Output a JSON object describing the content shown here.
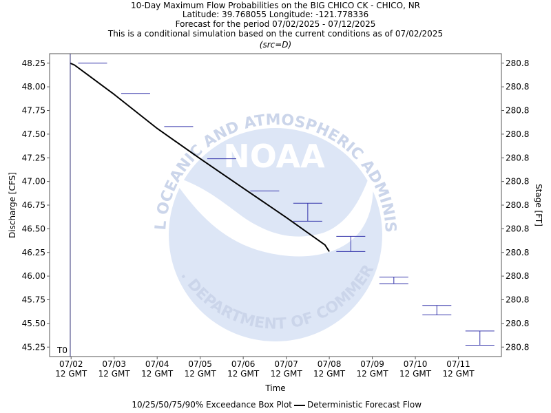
{
  "chart_data": {
    "type": "line",
    "title_lines": [
      "10-Day Maximum Flow Probabilities on the BIG CHICO CK - CHICO, NR",
      "Latitude: 39.768055 Longitude: -121.778336",
      "Forecast for the period 07/02/2025 - 07/12/2025",
      "This is a conditional simulation based on the current conditions as of 07/02/2025",
      "(src=D)"
    ],
    "xlabel": "Time",
    "ylabel": "Discharge [CFS]",
    "y2label": "Stage [FT]",
    "ylim": [
      45.15,
      48.35
    ],
    "xlim": [
      -0.5,
      10.0
    ],
    "x_ticks": [
      {
        "x": 0,
        "line1": "07/02",
        "line2": "12 GMT"
      },
      {
        "x": 1,
        "line1": "07/03",
        "line2": "12 GMT"
      },
      {
        "x": 2,
        "line1": "07/04",
        "line2": "12 GMT"
      },
      {
        "x": 3,
        "line1": "07/05",
        "line2": "12 GMT"
      },
      {
        "x": 4,
        "line1": "07/06",
        "line2": "12 GMT"
      },
      {
        "x": 5,
        "line1": "07/07",
        "line2": "12 GMT"
      },
      {
        "x": 6,
        "line1": "07/08",
        "line2": "12 GMT"
      },
      {
        "x": 7,
        "line1": "07/09",
        "line2": "12 GMT"
      },
      {
        "x": 8,
        "line1": "07/10",
        "line2": "12 GMT"
      },
      {
        "x": 9,
        "line1": "07/11",
        "line2": "12 GMT"
      }
    ],
    "y_ticks": [
      48.25,
      48.0,
      47.75,
      47.5,
      47.25,
      47.0,
      46.75,
      46.5,
      46.25,
      46.0,
      45.75,
      45.5,
      45.25
    ],
    "y_tick_labels": [
      "48.25",
      "48.00",
      "47.75",
      "47.50",
      "47.25",
      "47.00",
      "46.75",
      "46.50",
      "46.25",
      "46.00",
      "45.75",
      "45.50",
      "45.25"
    ],
    "y2_tick_labels": [
      "280.8",
      "280.8",
      "280.8",
      "280.8",
      "280.8",
      "280.8",
      "280.8",
      "280.8",
      "280.8",
      "280.8",
      "280.8",
      "280.8",
      "280.8"
    ],
    "t0_label": "T0",
    "t0_x": -0.02,
    "deterministic": {
      "name": "Deterministic Forecast Flow",
      "x": [
        -0.02,
        0.08,
        1.0,
        2.0,
        3.0,
        4.0,
        5.0,
        5.9,
        6.0
      ],
      "y": [
        48.25,
        48.23,
        47.92,
        47.56,
        47.24,
        46.93,
        46.62,
        46.33,
        46.26
      ]
    },
    "boxes": {
      "name": "10/25/50/75/90% Exceedance Box Plot",
      "items": [
        {
          "x": 0.5,
          "low": 48.25,
          "high": 48.25
        },
        {
          "x": 1.5,
          "low": 47.93,
          "high": 47.93
        },
        {
          "x": 2.5,
          "low": 47.58,
          "high": 47.58
        },
        {
          "x": 3.5,
          "low": 47.24,
          "high": 47.24
        },
        {
          "x": 4.5,
          "low": 46.9,
          "high": 46.9
        },
        {
          "x": 5.5,
          "low": 46.58,
          "high": 46.77
        },
        {
          "x": 6.5,
          "low": 46.26,
          "high": 46.42
        },
        {
          "x": 7.5,
          "low": 45.92,
          "high": 45.99
        },
        {
          "x": 8.5,
          "low": 45.59,
          "high": 45.69
        },
        {
          "x": 9.5,
          "low": 45.27,
          "high": 45.42
        }
      ]
    },
    "watermark": {
      "top_text": "NATIONAL OCEANIC AND ATMOSPHERIC ADMINISTRATION",
      "bottom_text": "U.S. DEPARTMENT OF COMMERCE",
      "center_text": "NOAA"
    },
    "colors": {
      "deterministic": "#000000",
      "box": "#3333aa",
      "t0_line": "#333377",
      "watermark": "#dde6f6",
      "watermark_text": "#cbd5ea",
      "axis": "#555555"
    }
  }
}
